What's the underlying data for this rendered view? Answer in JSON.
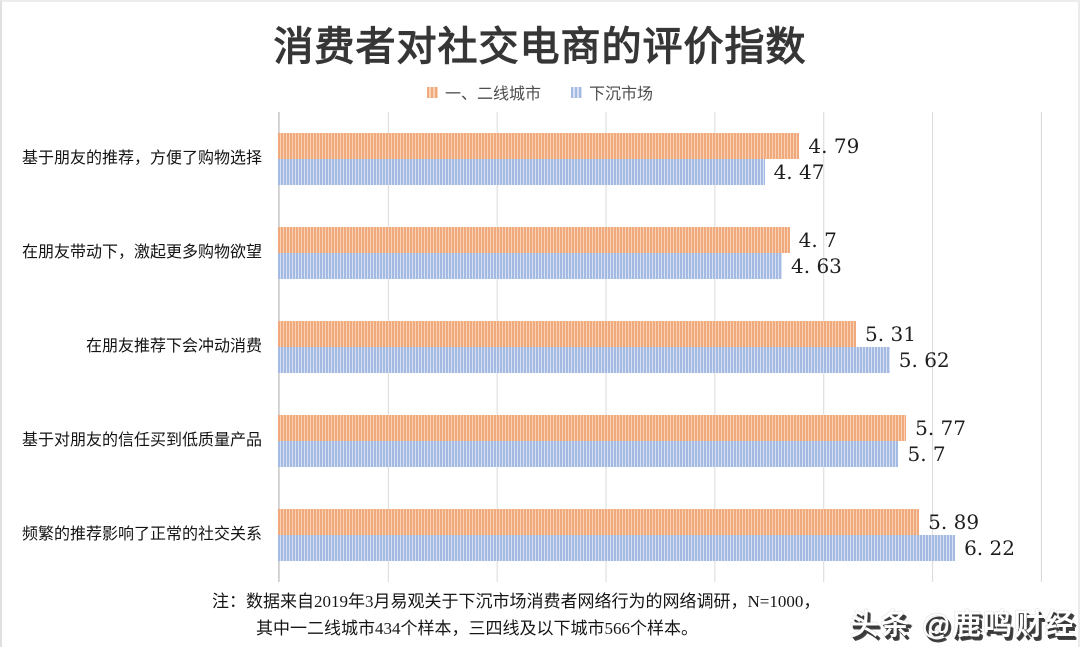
{
  "title": "消费者对社交电商的评价指数",
  "legend": {
    "series1_label": "一、二线城市",
    "series2_label": "下沉市场"
  },
  "colors": {
    "series1_base": "#F0A97D",
    "series1_stripe": "#F8D2B2",
    "series2_base": "#A5BAE3",
    "series2_stripe": "#D8E1F3",
    "gridline": "#D9D9D9",
    "gridline_axis": "#CFCFCF",
    "title_text": "#363636",
    "watermark_shadow": "#3A3A3A"
  },
  "chart_data": {
    "type": "bar",
    "orientation": "horizontal",
    "title": "消费者对社交电商的评价指数",
    "xlabel": "",
    "ylabel": "",
    "xlim": [
      0,
      7
    ],
    "gridline_interval": 1,
    "grid": true,
    "legend_position": "top",
    "categories": [
      "基于朋友的推荐，方便了购物选择",
      "在朋友带动下，激起更多购物欲望",
      "在朋友推荐下会冲动消费",
      "基于对朋友的信任买到低质量产品",
      "频繁的推荐影响了正常的社交关系"
    ],
    "series": [
      {
        "name": "一、二线城市",
        "values": [
          4.79,
          4.7,
          5.31,
          5.77,
          5.89
        ],
        "labels": [
          "4. 79",
          "4. 7",
          "5. 31",
          "5. 77",
          "5. 89"
        ]
      },
      {
        "name": "下沉市场",
        "values": [
          4.47,
          4.63,
          5.62,
          5.7,
          6.22
        ],
        "labels": [
          "4. 47",
          "4. 63",
          "5. 62",
          "5. 7",
          "6. 22"
        ]
      }
    ]
  },
  "note": {
    "line1": "注：数据来自2019年3月易观关于下沉市场消费者网络行为的网络调研，N=1000，",
    "line2": "其中一二线城市434个样本，三四线及以下城市566个样本。"
  },
  "watermark": "头条 @鹿鸣财经"
}
